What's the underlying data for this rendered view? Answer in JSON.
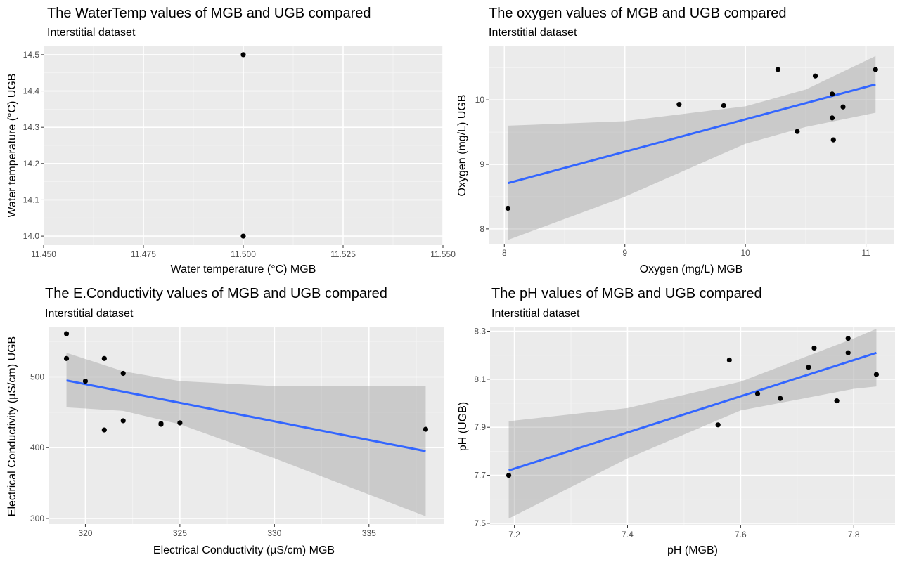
{
  "chart_data": [
    {
      "type": "scatter",
      "title": "The WaterTemp values of MGB and UGB compared",
      "subtitle": "Interstitial dataset",
      "xlabel": "Water temperature (°C) MGB",
      "ylabel": "Water temperature (°C) UGB",
      "xlim": [
        11.45,
        11.55
      ],
      "ylim": [
        13.975,
        14.525
      ],
      "xticks": [
        11.45,
        11.475,
        11.5,
        11.525,
        11.55
      ],
      "xtick_labels": [
        "11.450",
        "11.475",
        "11.500",
        "11.525",
        "11.550"
      ],
      "yticks": [
        14.0,
        14.1,
        14.2,
        14.3,
        14.4,
        14.5
      ],
      "ytick_labels": [
        "14.0",
        "14.1",
        "14.2",
        "14.3",
        "14.4",
        "14.5"
      ],
      "x": [
        11.5,
        11.5
      ],
      "y": [
        14.5,
        14.0
      ],
      "fit": null,
      "grid": true
    },
    {
      "type": "scatter",
      "title": "The oxygen values of MGB and UGB compared",
      "subtitle": "Interstitial dataset",
      "xlabel": "Oxygen (mg/L) MGB",
      "ylabel": "Oxygen (mg/L) UGB",
      "xlim": [
        7.87,
        11.23
      ],
      "ylim": [
        7.77,
        10.84
      ],
      "xticks": [
        8,
        9,
        10,
        11
      ],
      "xtick_labels": [
        "8",
        "9",
        "10",
        "11"
      ],
      "yticks": [
        8,
        9,
        10
      ],
      "ytick_labels": [
        "8",
        "9",
        "10"
      ],
      "x": [
        8.03,
        9.45,
        9.82,
        10.27,
        10.43,
        10.58,
        10.72,
        10.72,
        10.73,
        10.81,
        11.08
      ],
      "y": [
        8.32,
        9.93,
        9.91,
        10.47,
        9.51,
        10.37,
        10.09,
        9.72,
        9.38,
        9.89,
        10.47
      ],
      "fit": {
        "x": [
          8.03,
          11.08
        ],
        "y": [
          8.71,
          10.24
        ],
        "band_x": [
          8.03,
          9.0,
          10.0,
          10.5,
          11.08
        ],
        "band_upper": [
          9.6,
          9.67,
          9.9,
          10.16,
          10.68
        ],
        "band_lower": [
          7.83,
          8.5,
          9.32,
          9.58,
          9.8
        ]
      },
      "grid": true
    },
    {
      "type": "scatter",
      "title": "The E.Conductivity values of MGB and UGB compared",
      "subtitle": "Interstitial dataset",
      "xlabel": "Electrical Conductivity (µS/cm) MGB",
      "ylabel": "Electrical Conductivity (µS/cm) UGB",
      "xlim": [
        318.05,
        338.95
      ],
      "ylim": [
        292,
        571
      ],
      "xticks": [
        320,
        325,
        330,
        335
      ],
      "xtick_labels": [
        "320",
        "325",
        "330",
        "335"
      ],
      "yticks": [
        300,
        400,
        500
      ],
      "ytick_labels": [
        "300",
        "400",
        "500"
      ],
      "x": [
        319,
        319,
        320,
        321,
        321,
        322,
        322,
        324,
        324,
        325,
        338
      ],
      "y": [
        561,
        526,
        494,
        526,
        425,
        505,
        438,
        434,
        433,
        435,
        426
      ],
      "fit": {
        "x": [
          319,
          338
        ],
        "y": [
          495,
          395
        ],
        "band_x": [
          319,
          322,
          325,
          330,
          338
        ],
        "band_upper": [
          534,
          508,
          494,
          487,
          487
        ],
        "band_lower": [
          457,
          452,
          433,
          385,
          303
        ]
      },
      "grid": true
    },
    {
      "type": "scatter",
      "title": "The pH values of MGB and UGB compared",
      "subtitle": "Interstitial dataset",
      "xlabel": "pH (MGB)",
      "ylabel": "pH (UGB)",
      "xlim": [
        7.157,
        7.873
      ],
      "ylim": [
        7.491,
        8.319
      ],
      "xticks": [
        7.2,
        7.4,
        7.6,
        7.8
      ],
      "xtick_labels": [
        "7.2",
        "7.4",
        "7.6",
        "7.8"
      ],
      "yticks": [
        7.5,
        7.7,
        7.9,
        8.1,
        8.3
      ],
      "ytick_labels": [
        "7.5",
        "7.7",
        "7.9",
        "8.1",
        "8.3"
      ],
      "x": [
        7.19,
        7.56,
        7.58,
        7.63,
        7.67,
        7.72,
        7.73,
        7.77,
        7.79,
        7.79,
        7.84
      ],
      "y": [
        7.7,
        7.91,
        8.18,
        8.04,
        8.02,
        8.15,
        8.23,
        8.01,
        8.27,
        8.21,
        8.12
      ],
      "fit": {
        "x": [
          7.19,
          7.84
        ],
        "y": [
          7.72,
          8.21
        ],
        "band_x": [
          7.19,
          7.4,
          7.6,
          7.8,
          7.84
        ],
        "band_upper": [
          7.925,
          7.98,
          8.09,
          8.27,
          8.31
        ],
        "band_lower": [
          7.52,
          7.77,
          7.97,
          8.06,
          8.07
        ]
      },
      "grid": true
    }
  ],
  "colors": {
    "panel_bg": "#EBEBEB",
    "grid_major": "#FFFFFF",
    "fit_line": "#3366FF",
    "band": "#999999",
    "point": "#000000"
  }
}
